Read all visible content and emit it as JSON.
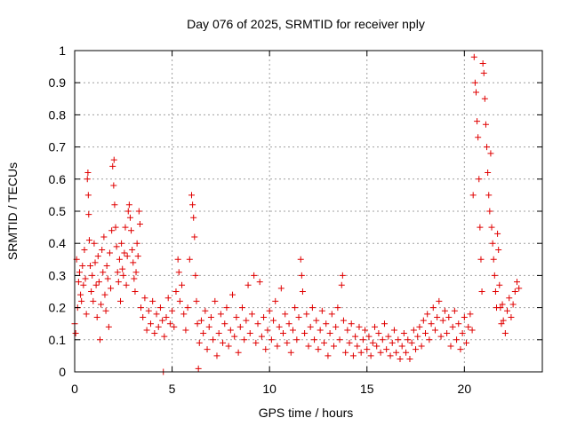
{
  "chart_data": {
    "type": "scatter",
    "title": "Day 076 of 2025, SRMTID for receiver nply",
    "xlabel": "GPS time / hours",
    "ylabel": "SRMTID / TECUs",
    "xlim": [
      0,
      24
    ],
    "ylim": [
      0,
      1
    ],
    "xticks": [
      0,
      5,
      10,
      15,
      20
    ],
    "yticks": [
      0,
      0.1,
      0.2,
      0.3,
      0.4,
      0.5,
      0.6,
      0.7,
      0.8,
      0.9,
      1
    ],
    "xtick_labels": [
      "0",
      "5",
      "10",
      "15",
      "20"
    ],
    "ytick_labels": [
      "0",
      "0.1",
      "0.2",
      "0.3",
      "0.4",
      "0.5",
      "0.6",
      "0.7",
      "0.8",
      "0.9",
      "1"
    ],
    "grid": true,
    "marker": "plus",
    "color": "#e00000",
    "series": [
      {
        "name": "SRMTID",
        "points": [
          [
            0.0,
            0.15
          ],
          [
            0.05,
            0.12
          ],
          [
            0.1,
            0.35
          ],
          [
            0.15,
            0.2
          ],
          [
            0.2,
            0.28
          ],
          [
            0.25,
            0.31
          ],
          [
            0.3,
            0.24
          ],
          [
            0.35,
            0.22
          ],
          [
            0.4,
            0.33
          ],
          [
            0.45,
            0.27
          ],
          [
            0.5,
            0.38
          ],
          [
            0.55,
            0.29
          ],
          [
            0.6,
            0.18
          ],
          [
            0.65,
            0.6
          ],
          [
            0.68,
            0.62
          ],
          [
            0.7,
            0.55
          ],
          [
            0.72,
            0.49
          ],
          [
            0.75,
            0.41
          ],
          [
            0.8,
            0.33
          ],
          [
            0.85,
            0.25
          ],
          [
            0.9,
            0.3
          ],
          [
            0.95,
            0.22
          ],
          [
            1.0,
            0.4
          ],
          [
            1.05,
            0.34
          ],
          [
            1.1,
            0.27
          ],
          [
            1.15,
            0.17
          ],
          [
            1.2,
            0.36
          ],
          [
            1.25,
            0.28
          ],
          [
            1.3,
            0.1
          ],
          [
            1.35,
            0.21
          ],
          [
            1.4,
            0.38
          ],
          [
            1.45,
            0.31
          ],
          [
            1.5,
            0.42
          ],
          [
            1.55,
            0.24
          ],
          [
            1.6,
            0.19
          ],
          [
            1.65,
            0.33
          ],
          [
            1.7,
            0.29
          ],
          [
            1.75,
            0.14
          ],
          [
            1.8,
            0.37
          ],
          [
            1.85,
            0.26
          ],
          [
            1.9,
            0.44
          ],
          [
            1.95,
            0.64
          ],
          [
            2.0,
            0.58
          ],
          [
            2.02,
            0.66
          ],
          [
            2.05,
            0.52
          ],
          [
            2.1,
            0.45
          ],
          [
            2.15,
            0.39
          ],
          [
            2.2,
            0.31
          ],
          [
            2.25,
            0.28
          ],
          [
            2.3,
            0.35
          ],
          [
            2.35,
            0.22
          ],
          [
            2.4,
            0.4
          ],
          [
            2.45,
            0.32
          ],
          [
            2.5,
            0.3
          ],
          [
            2.55,
            0.37
          ],
          [
            2.6,
            0.45
          ],
          [
            2.65,
            0.27
          ],
          [
            2.7,
            0.36
          ],
          [
            2.75,
            0.5
          ],
          [
            2.8,
            0.52
          ],
          [
            2.85,
            0.48
          ],
          [
            2.9,
            0.44
          ],
          [
            2.95,
            0.38
          ],
          [
            3.0,
            0.34
          ],
          [
            3.05,
            0.29
          ],
          [
            3.1,
            0.25
          ],
          [
            3.15,
            0.31
          ],
          [
            3.2,
            0.4
          ],
          [
            3.25,
            0.36
          ],
          [
            3.3,
            0.5
          ],
          [
            3.35,
            0.46
          ],
          [
            3.4,
            0.2
          ],
          [
            3.5,
            0.17
          ],
          [
            3.6,
            0.23
          ],
          [
            3.7,
            0.13
          ],
          [
            3.8,
            0.19
          ],
          [
            3.9,
            0.15
          ],
          [
            4.0,
            0.22
          ],
          [
            4.1,
            0.12
          ],
          [
            4.2,
            0.18
          ],
          [
            4.3,
            0.14
          ],
          [
            4.4,
            0.2
          ],
          [
            4.5,
            0.16
          ],
          [
            4.55,
            0.0
          ],
          [
            4.6,
            0.11
          ],
          [
            4.7,
            0.17
          ],
          [
            4.8,
            0.23
          ],
          [
            4.9,
            0.15
          ],
          [
            5.0,
            0.19
          ],
          [
            5.1,
            0.14
          ],
          [
            5.2,
            0.25
          ],
          [
            5.3,
            0.35
          ],
          [
            5.35,
            0.31
          ],
          [
            5.4,
            0.22
          ],
          [
            5.5,
            0.27
          ],
          [
            5.6,
            0.18
          ],
          [
            5.7,
            0.13
          ],
          [
            5.8,
            0.2
          ],
          [
            5.9,
            0.35
          ],
          [
            6.0,
            0.55
          ],
          [
            6.05,
            0.52
          ],
          [
            6.1,
            0.48
          ],
          [
            6.15,
            0.42
          ],
          [
            6.2,
            0.3
          ],
          [
            6.25,
            0.22
          ],
          [
            6.3,
            0.15
          ],
          [
            6.35,
            0.01
          ],
          [
            6.4,
            0.09
          ],
          [
            6.5,
            0.16
          ],
          [
            6.6,
            0.12
          ],
          [
            6.7,
            0.19
          ],
          [
            6.8,
            0.07
          ],
          [
            6.9,
            0.14
          ],
          [
            7.0,
            0.17
          ],
          [
            7.1,
            0.1
          ],
          [
            7.2,
            0.22
          ],
          [
            7.3,
            0.05
          ],
          [
            7.4,
            0.12
          ],
          [
            7.5,
            0.18
          ],
          [
            7.6,
            0.09
          ],
          [
            7.7,
            0.15
          ],
          [
            7.8,
            0.2
          ],
          [
            7.9,
            0.08
          ],
          [
            8.0,
            0.13
          ],
          [
            8.1,
            0.24
          ],
          [
            8.2,
            0.11
          ],
          [
            8.3,
            0.17
          ],
          [
            8.4,
            0.06
          ],
          [
            8.5,
            0.14
          ],
          [
            8.6,
            0.2
          ],
          [
            8.7,
            0.1
          ],
          [
            8.8,
            0.16
          ],
          [
            8.9,
            0.27
          ],
          [
            9.0,
            0.12
          ],
          [
            9.1,
            0.18
          ],
          [
            9.2,
            0.3
          ],
          [
            9.3,
            0.09
          ],
          [
            9.4,
            0.15
          ],
          [
            9.5,
            0.28
          ],
          [
            9.6,
            0.11
          ],
          [
            9.7,
            0.17
          ],
          [
            9.8,
            0.07
          ],
          [
            9.9,
            0.13
          ],
          [
            10.0,
            0.19
          ],
          [
            10.1,
            0.1
          ],
          [
            10.2,
            0.16
          ],
          [
            10.3,
            0.22
          ],
          [
            10.4,
            0.08
          ],
          [
            10.5,
            0.14
          ],
          [
            10.6,
            0.26
          ],
          [
            10.7,
            0.12
          ],
          [
            10.8,
            0.18
          ],
          [
            10.9,
            0.09
          ],
          [
            11.0,
            0.15
          ],
          [
            11.1,
            0.06
          ],
          [
            11.2,
            0.13
          ],
          [
            11.3,
            0.2
          ],
          [
            11.4,
            0.1
          ],
          [
            11.5,
            0.17
          ],
          [
            11.6,
            0.35
          ],
          [
            11.65,
            0.3
          ],
          [
            11.7,
            0.25
          ],
          [
            11.8,
            0.12
          ],
          [
            11.9,
            0.18
          ],
          [
            12.0,
            0.08
          ],
          [
            12.1,
            0.14
          ],
          [
            12.2,
            0.2
          ],
          [
            12.3,
            0.1
          ],
          [
            12.4,
            0.16
          ],
          [
            12.5,
            0.07
          ],
          [
            12.6,
            0.13
          ],
          [
            12.7,
            0.19
          ],
          [
            12.8,
            0.09
          ],
          [
            12.9,
            0.15
          ],
          [
            13.0,
            0.05
          ],
          [
            13.1,
            0.12
          ],
          [
            13.2,
            0.18
          ],
          [
            13.3,
            0.08
          ],
          [
            13.4,
            0.14
          ],
          [
            13.5,
            0.2
          ],
          [
            13.6,
            0.1
          ],
          [
            13.7,
            0.27
          ],
          [
            13.75,
            0.3
          ],
          [
            13.8,
            0.16
          ],
          [
            13.9,
            0.06
          ],
          [
            14.0,
            0.13
          ],
          [
            14.1,
            0.09
          ],
          [
            14.2,
            0.15
          ],
          [
            14.3,
            0.05
          ],
          [
            14.4,
            0.11
          ],
          [
            14.5,
            0.08
          ],
          [
            14.6,
            0.14
          ],
          [
            14.7,
            0.06
          ],
          [
            14.8,
            0.1
          ],
          [
            14.9,
            0.13
          ],
          [
            15.0,
            0.07
          ],
          [
            15.1,
            0.11
          ],
          [
            15.2,
            0.05
          ],
          [
            15.3,
            0.09
          ],
          [
            15.4,
            0.14
          ],
          [
            15.5,
            0.08
          ],
          [
            15.6,
            0.12
          ],
          [
            15.7,
            0.06
          ],
          [
            15.8,
            0.1
          ],
          [
            15.9,
            0.15
          ],
          [
            16.0,
            0.07
          ],
          [
            16.1,
            0.11
          ],
          [
            16.2,
            0.05
          ],
          [
            16.3,
            0.09
          ],
          [
            16.4,
            0.13
          ],
          [
            16.5,
            0.06
          ],
          [
            16.6,
            0.1
          ],
          [
            16.7,
            0.04
          ],
          [
            16.8,
            0.08
          ],
          [
            16.9,
            0.12
          ],
          [
            17.0,
            0.06
          ],
          [
            17.1,
            0.1
          ],
          [
            17.2,
            0.04
          ],
          [
            17.3,
            0.09
          ],
          [
            17.4,
            0.13
          ],
          [
            17.5,
            0.07
          ],
          [
            17.6,
            0.11
          ],
          [
            17.7,
            0.14
          ],
          [
            17.8,
            0.08
          ],
          [
            17.9,
            0.16
          ],
          [
            18.0,
            0.12
          ],
          [
            18.1,
            0.18
          ],
          [
            18.2,
            0.1
          ],
          [
            18.3,
            0.15
          ],
          [
            18.4,
            0.2
          ],
          [
            18.5,
            0.13
          ],
          [
            18.6,
            0.17
          ],
          [
            18.7,
            0.22
          ],
          [
            18.8,
            0.11
          ],
          [
            18.9,
            0.16
          ],
          [
            19.0,
            0.19
          ],
          [
            19.1,
            0.12
          ],
          [
            19.2,
            0.17
          ],
          [
            19.3,
            0.08
          ],
          [
            19.4,
            0.14
          ],
          [
            19.5,
            0.19
          ],
          [
            19.6,
            0.1
          ],
          [
            19.7,
            0.15
          ],
          [
            19.8,
            0.07
          ],
          [
            19.9,
            0.12
          ],
          [
            20.0,
            0.17
          ],
          [
            20.1,
            0.09
          ],
          [
            20.2,
            0.14
          ],
          [
            20.3,
            0.18
          ],
          [
            20.4,
            0.13
          ],
          [
            20.45,
            0.55
          ],
          [
            20.5,
            0.98
          ],
          [
            20.55,
            0.9
          ],
          [
            20.6,
            0.87
          ],
          [
            20.65,
            0.78
          ],
          [
            20.7,
            0.73
          ],
          [
            20.75,
            0.6
          ],
          [
            20.8,
            0.45
          ],
          [
            20.85,
            0.35
          ],
          [
            20.9,
            0.25
          ],
          [
            20.95,
            0.96
          ],
          [
            21.0,
            0.93
          ],
          [
            21.05,
            0.85
          ],
          [
            21.1,
            0.77
          ],
          [
            21.15,
            0.7
          ],
          [
            21.2,
            0.62
          ],
          [
            21.25,
            0.55
          ],
          [
            21.3,
            0.5
          ],
          [
            21.35,
            0.68
          ],
          [
            21.4,
            0.45
          ],
          [
            21.45,
            0.4
          ],
          [
            21.5,
            0.35
          ],
          [
            21.55,
            0.3
          ],
          [
            21.6,
            0.25
          ],
          [
            21.65,
            0.2
          ],
          [
            21.7,
            0.43
          ],
          [
            21.75,
            0.38
          ],
          [
            21.8,
            0.27
          ],
          [
            21.85,
            0.2
          ],
          [
            21.9,
            0.15
          ],
          [
            21.95,
            0.21
          ],
          [
            22.0,
            0.16
          ],
          [
            22.1,
            0.12
          ],
          [
            22.2,
            0.19
          ],
          [
            22.3,
            0.23
          ],
          [
            22.4,
            0.17
          ],
          [
            22.5,
            0.21
          ],
          [
            22.6,
            0.25
          ],
          [
            22.7,
            0.28
          ],
          [
            22.8,
            0.26
          ]
        ]
      }
    ]
  }
}
